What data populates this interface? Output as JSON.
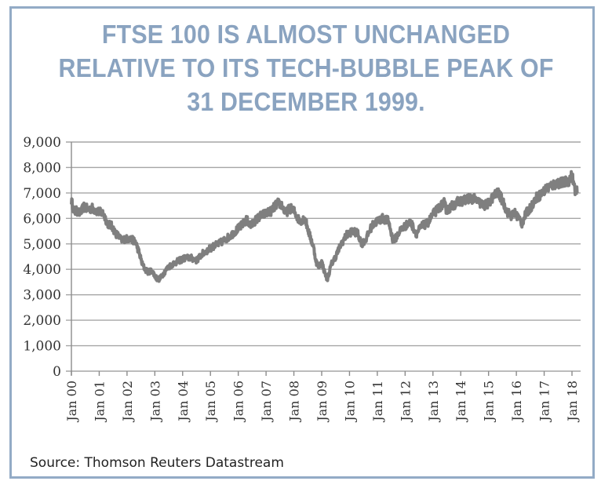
{
  "frame": {
    "border_color": "#93abc6"
  },
  "title_lines": [
    "FTSE 100 IS ALMOST UNCHANGED",
    "RELATIVE TO ITS TECH-BUBBLE PEAK OF",
    "31 DECEMBER 1999."
  ],
  "source": "Source: Thomson Reuters Datastream",
  "colors": {
    "title": "#8aa3c0",
    "line": "#7f7f7f",
    "grid": "#a6a6a6",
    "axis": "#8c8c8c"
  },
  "chart_data": {
    "type": "line",
    "title": "FTSE 100 IS ALMOST UNCHANGED RELATIVE TO ITS TECH-BUBBLE PEAK OF 31 DECEMBER 1999.",
    "xlabel": "",
    "ylabel": "",
    "ylim": [
      0,
      9000
    ],
    "yticks": [
      0,
      1000,
      2000,
      3000,
      4000,
      5000,
      6000,
      7000,
      8000,
      9000
    ],
    "ytick_labels": [
      "0",
      "1,000",
      "2,000",
      "3,000",
      "4,000",
      "5,000",
      "6,000",
      "7,000",
      "8,000",
      "9,000"
    ],
    "xlim": [
      2000.0,
      2018.3
    ],
    "xticks": [
      2000,
      2001,
      2002,
      2003,
      2004,
      2005,
      2006,
      2007,
      2008,
      2009,
      2010,
      2011,
      2012,
      2013,
      2014,
      2015,
      2016,
      2017,
      2018
    ],
    "xtick_labels": [
      "Jan 00",
      "Jan 01",
      "Jan 02",
      "Jan 03",
      "Jan 04",
      "Jan 05",
      "Jan 06",
      "Jan 07",
      "Jan 08",
      "Jan 09",
      "Jan 10",
      "Jan 11",
      "Jan 12",
      "Jan 13",
      "Jan 14",
      "Jan 15",
      "Jan 16",
      "Jan 17",
      "Jan 18"
    ],
    "grid": true,
    "legend": "none",
    "series": [
      {
        "name": "FTSE 100",
        "x": [
          2000.0,
          2000.1,
          2000.2,
          2000.3,
          2000.45,
          2000.6,
          2000.75,
          2000.9,
          2001.0,
          2001.15,
          2001.3,
          2001.45,
          2001.6,
          2001.7,
          2001.8,
          2001.95,
          2002.1,
          2002.3,
          2002.45,
          2002.55,
          2002.65,
          2002.75,
          2002.9,
          2003.0,
          2003.1,
          2003.2,
          2003.35,
          2003.5,
          2003.7,
          2003.9,
          2004.1,
          2004.3,
          2004.5,
          2004.7,
          2004.9,
          2005.1,
          2005.3,
          2005.5,
          2005.7,
          2005.9,
          2006.1,
          2006.3,
          2006.45,
          2006.6,
          2006.8,
          2007.0,
          2007.2,
          2007.4,
          2007.55,
          2007.7,
          2007.85,
          2008.0,
          2008.2,
          2008.4,
          2008.55,
          2008.7,
          2008.8,
          2008.9,
          2009.0,
          2009.1,
          2009.2,
          2009.35,
          2009.5,
          2009.7,
          2009.9,
          2010.1,
          2010.3,
          2010.45,
          2010.6,
          2010.8,
          2011.0,
          2011.2,
          2011.4,
          2011.55,
          2011.65,
          2011.8,
          2012.0,
          2012.2,
          2012.4,
          2012.6,
          2012.8,
          2013.0,
          2013.2,
          2013.4,
          2013.5,
          2013.7,
          2013.9,
          2014.1,
          2014.3,
          2014.5,
          2014.7,
          2014.85,
          2015.0,
          2015.2,
          2015.35,
          2015.5,
          2015.65,
          2015.8,
          2015.95,
          2016.1,
          2016.2,
          2016.35,
          2016.5,
          2016.7,
          2016.9,
          2017.1,
          2017.3,
          2017.5,
          2017.7,
          2017.9,
          2018.0,
          2018.1,
          2018.2
        ],
        "values": [
          6700,
          6250,
          6300,
          6200,
          6450,
          6350,
          6400,
          6300,
          6250,
          6200,
          5800,
          5700,
          5400,
          5300,
          5150,
          5200,
          5200,
          5100,
          4600,
          4200,
          4000,
          3900,
          3950,
          3750,
          3600,
          3650,
          3900,
          4100,
          4250,
          4350,
          4450,
          4450,
          4350,
          4600,
          4750,
          4900,
          5000,
          5150,
          5300,
          5500,
          5700,
          5950,
          5700,
          5900,
          6100,
          6200,
          6300,
          6600,
          6550,
          6200,
          6400,
          6300,
          5900,
          6000,
          5400,
          4900,
          4300,
          4100,
          4300,
          3900,
          3600,
          4200,
          4500,
          5000,
          5350,
          5500,
          5400,
          5000,
          5200,
          5700,
          5900,
          6000,
          5900,
          5200,
          5200,
          5500,
          5700,
          5850,
          5400,
          5700,
          5800,
          6150,
          6400,
          6600,
          6300,
          6500,
          6650,
          6700,
          6800,
          6750,
          6600,
          6500,
          6600,
          6900,
          7000,
          6700,
          6300,
          6100,
          6200,
          6000,
          5800,
          6200,
          6400,
          6800,
          6950,
          7200,
          7300,
          7400,
          7400,
          7500,
          7700,
          7150,
          7000
        ]
      }
    ]
  }
}
